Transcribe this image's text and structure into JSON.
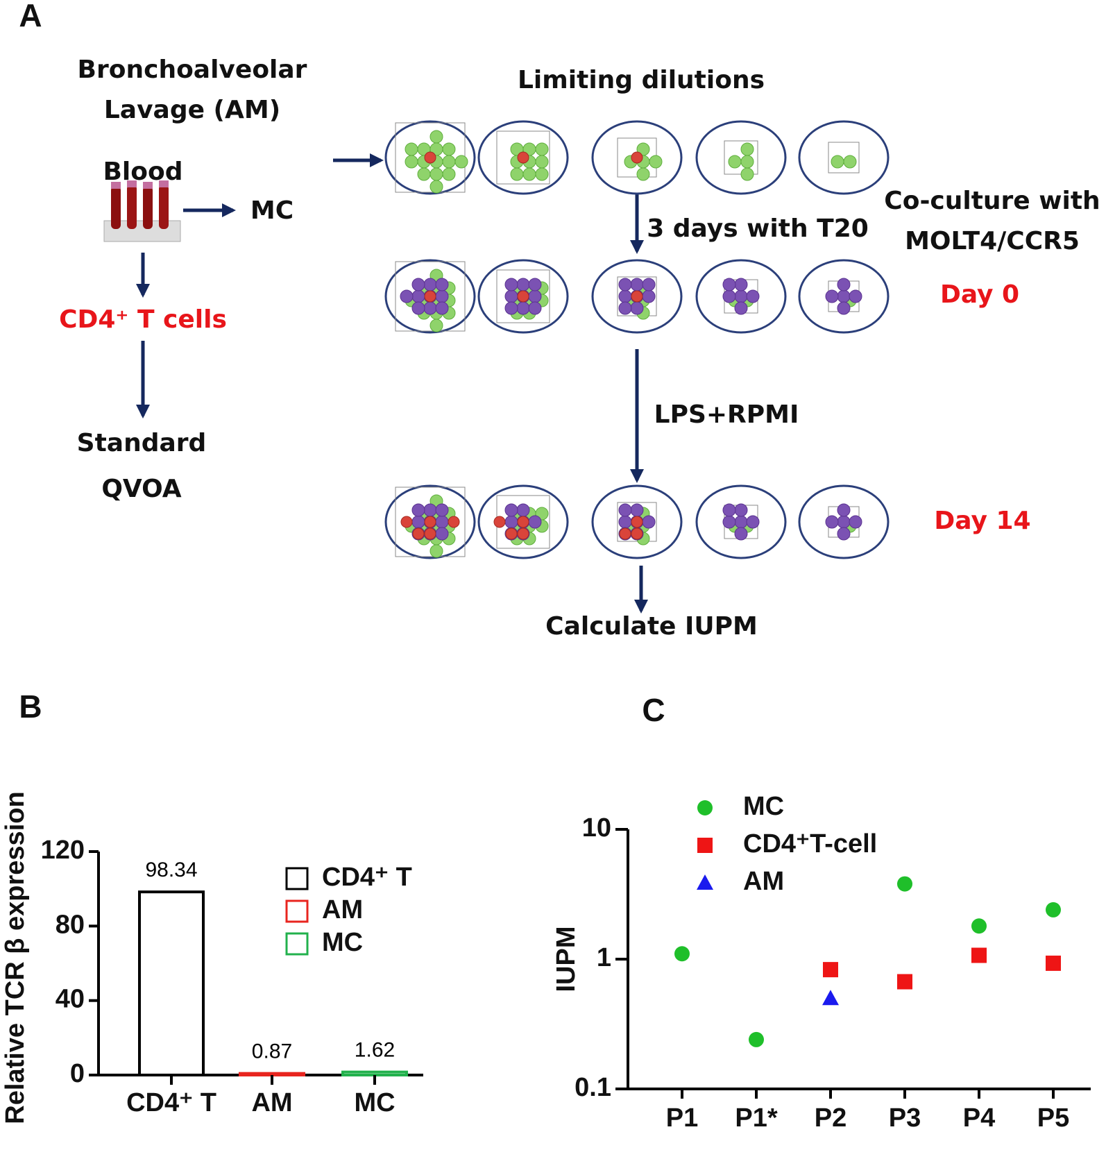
{
  "panel_a": {
    "label": "A",
    "source_am": [
      "Bronchoalveolar",
      "Lavage (AM)"
    ],
    "blood": "Blood",
    "mc": "MC",
    "cd4": "CD4⁺ T cells",
    "standard_qvoa": [
      "Standard",
      "QVOA"
    ],
    "limiting_dilutions": "Limiting dilutions",
    "step1": "3 days with T20",
    "coculture": [
      "Co-culture with",
      "MOLT4/CCR5"
    ],
    "day0": "Day 0",
    "step2": "LPS+RPMI",
    "day14": "Day 14",
    "result": "Calculate IUPM"
  },
  "chart_data": [
    {
      "type": "bar",
      "label": "B",
      "y_label": "Relative TCR β expression",
      "categories": [
        "CD4⁺ T",
        "AM",
        "MC"
      ],
      "values": [
        98.34,
        0.87,
        1.62
      ],
      "colors": [
        "#000000",
        "#e8251f",
        "#22b14c"
      ],
      "ylim": [
        0,
        120
      ],
      "yticks": [
        0,
        40,
        80,
        120
      ],
      "legend": "upper right"
    },
    {
      "type": "scatter",
      "label": "C",
      "y_label": "IUPM",
      "log_scale": true,
      "categories": [
        "P1",
        "P1*",
        "P2",
        "P3",
        "P4",
        "P5"
      ],
      "series": [
        {
          "name": "MC",
          "color": "#1fbf2a",
          "marker": "circle",
          "values": [
            1.1,
            0.24,
            null,
            3.8,
            1.8,
            2.4
          ]
        },
        {
          "name": "CD4⁺T-cell",
          "color": "#ee1515",
          "marker": "square",
          "values": [
            null,
            null,
            0.83,
            0.67,
            1.07,
            0.93
          ]
        },
        {
          "name": "AM",
          "color": "#1a1aee",
          "marker": "triangle",
          "values": [
            null,
            null,
            0.5,
            null,
            null,
            null
          ]
        }
      ],
      "ylim": [
        0.1,
        10
      ],
      "yticks": [
        0.1,
        1,
        10
      ],
      "legend": "upper left"
    }
  ]
}
